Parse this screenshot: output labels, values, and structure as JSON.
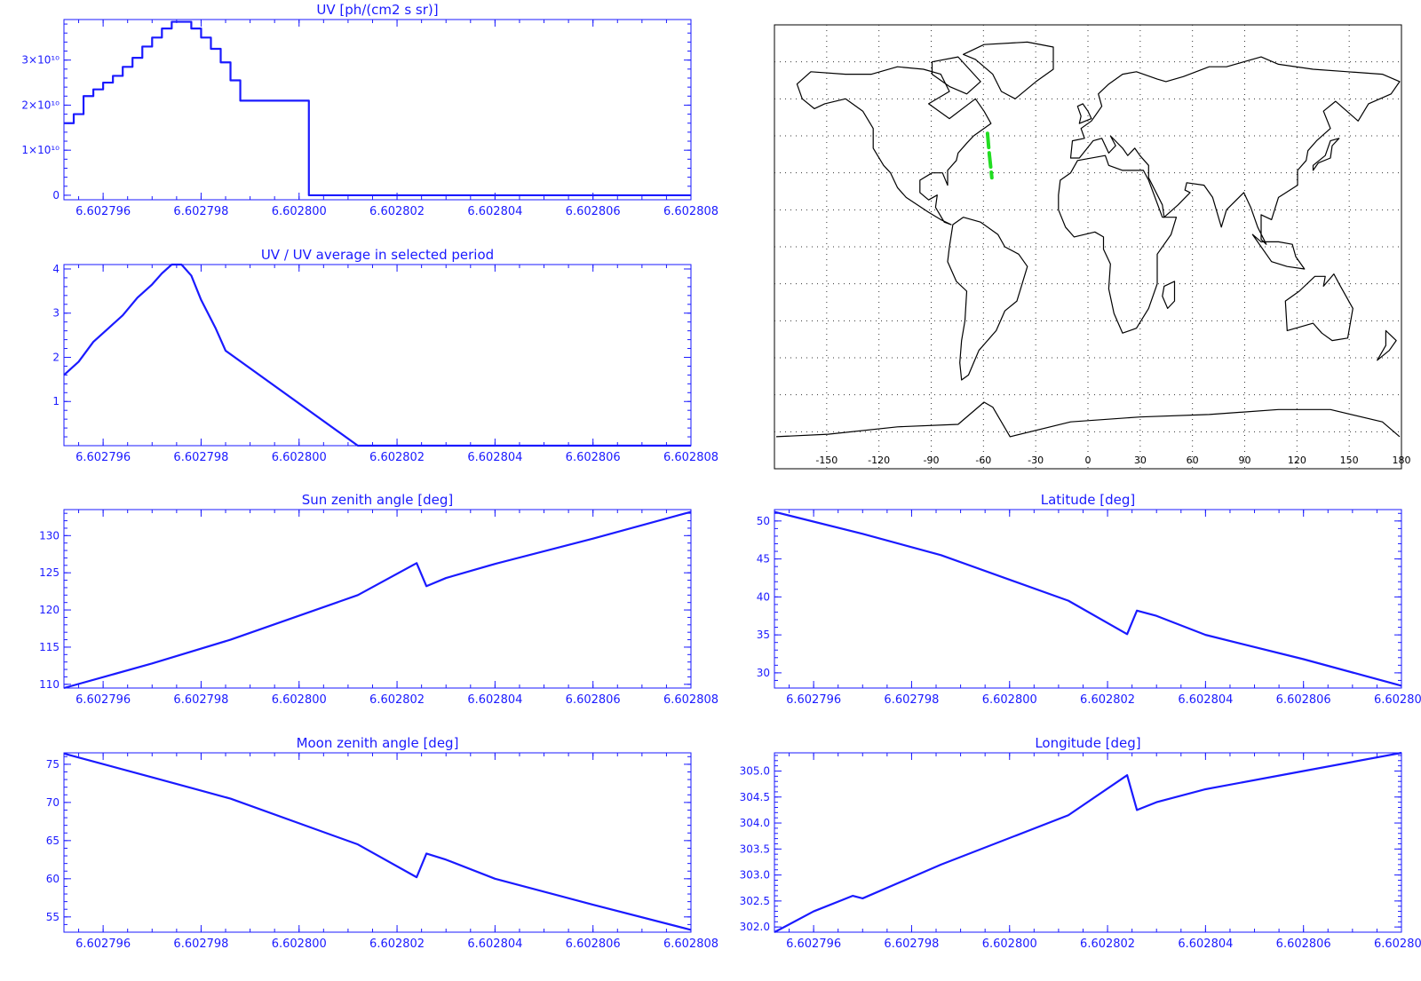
{
  "colors": {
    "plot": "#1a1aff",
    "map_outline": "#000000",
    "map_track": "#22dd22",
    "map_grid": "#333333"
  },
  "x_ticks": [
    "6.602796",
    "6.602798",
    "6.602800",
    "6.602802",
    "6.602804",
    "6.602806",
    "6.602808"
  ],
  "map": {
    "lon_ticks": [
      "-150",
      "-120",
      "-90",
      "-60",
      "-30",
      "0",
      "30",
      "60",
      "90",
      "120",
      "150",
      "180"
    ],
    "track": [
      [
        -58,
        46
      ],
      [
        -57,
        38
      ],
      [
        -55.5,
        28
      ]
    ]
  },
  "chart_data": [
    {
      "id": "uv",
      "type": "line",
      "step": true,
      "title": "UV [ph/(cm2 s sr)]",
      "xlim": [
        6.6027952,
        6.602808
      ],
      "ylim": [
        -1000000000.0,
        39000000000.0
      ],
      "y_ticks": [
        {
          "v": 0,
          "label": "0"
        },
        {
          "v": 10000000000.0,
          "label": "1×10¹⁰"
        },
        {
          "v": 20000000000.0,
          "label": "2×10¹⁰"
        },
        {
          "v": 30000000000.0,
          "label": "3×10¹⁰"
        }
      ],
      "x": [
        6.6027952,
        6.6027954,
        6.6027956,
        6.6027958,
        6.602796,
        6.6027962,
        6.6027964,
        6.6027966,
        6.6027968,
        6.602797,
        6.6027972,
        6.6027974,
        6.6027976,
        6.6027978,
        6.602798,
        6.6027982,
        6.6027984,
        6.6027986,
        6.6027988,
        6.6028,
        6.6028002,
        6.6028018,
        6.602808
      ],
      "values": [
        16000000000.0,
        18000000000.0,
        22000000000.0,
        23500000000.0,
        25000000000.0,
        26500000000.0,
        28500000000.0,
        30500000000.0,
        33000000000.0,
        35000000000.0,
        37000000000.0,
        38500000000.0,
        38500000000.0,
        37000000000.0,
        35000000000.0,
        32500000000.0,
        29500000000.0,
        25500000000.0,
        21000000000.0,
        21000000000.0,
        0,
        0,
        0
      ]
    },
    {
      "id": "ratio",
      "type": "line",
      "title": "UV / UV average in selected period",
      "xlim": [
        6.6027952,
        6.602808
      ],
      "ylim": [
        0,
        4.1
      ],
      "y_ticks": [
        {
          "v": 1,
          "label": "1"
        },
        {
          "v": 2,
          "label": "2"
        },
        {
          "v": 3,
          "label": "3"
        },
        {
          "v": 4,
          "label": "4"
        }
      ],
      "x": [
        6.6027952,
        6.6027955,
        6.6027958,
        6.6027961,
        6.6027964,
        6.6027967,
        6.602797,
        6.6027972,
        6.6027974,
        6.6027976,
        6.6027978,
        6.602798,
        6.6027983,
        6.6027985,
        6.6028012,
        6.602802,
        6.602808
      ],
      "values": [
        1.6,
        1.9,
        2.35,
        2.65,
        2.95,
        3.35,
        3.65,
        3.9,
        4.1,
        4.1,
        3.85,
        3.3,
        2.65,
        2.15,
        0.0,
        0.0,
        0.0
      ]
    },
    {
      "id": "sun",
      "type": "line",
      "title": "Sun zenith angle [deg]",
      "xlim": [
        6.6027952,
        6.602808
      ],
      "ylim": [
        109.5,
        133.5
      ],
      "y_ticks": [
        {
          "v": 110,
          "label": "110"
        },
        {
          "v": 115,
          "label": "115"
        },
        {
          "v": 120,
          "label": "120"
        },
        {
          "v": 125,
          "label": "125"
        },
        {
          "v": 130,
          "label": "130"
        }
      ],
      "x": [
        6.6027952,
        6.602797,
        6.6027986,
        6.6028012,
        6.6028024,
        6.6028026,
        6.602803,
        6.602804,
        6.602806,
        6.602808
      ],
      "values": [
        109.5,
        112.8,
        116,
        122,
        126.3,
        123.2,
        124.3,
        126.2,
        129.6,
        133.2
      ]
    },
    {
      "id": "lat",
      "type": "line",
      "title": "Latitude [deg]",
      "xlim": [
        6.6027952,
        6.602808
      ],
      "ylim": [
        28,
        51.5
      ],
      "y_ticks": [
        {
          "v": 30,
          "label": "30"
        },
        {
          "v": 35,
          "label": "35"
        },
        {
          "v": 40,
          "label": "40"
        },
        {
          "v": 45,
          "label": "45"
        },
        {
          "v": 50,
          "label": "50"
        }
      ],
      "x": [
        6.6027952,
        6.602797,
        6.6027986,
        6.6028012,
        6.6028024,
        6.6028026,
        6.602803,
        6.602804,
        6.602806,
        6.602808
      ],
      "values": [
        51.2,
        48.3,
        45.5,
        39.5,
        35.1,
        38.2,
        37.5,
        35.0,
        31.8,
        28.3
      ]
    },
    {
      "id": "moon",
      "type": "line",
      "title": "Moon zenith angle [deg]",
      "xlim": [
        6.6027952,
        6.602808
      ],
      "ylim": [
        53,
        76.5
      ],
      "y_ticks": [
        {
          "v": 55,
          "label": "55"
        },
        {
          "v": 60,
          "label": "60"
        },
        {
          "v": 65,
          "label": "65"
        },
        {
          "v": 70,
          "label": "70"
        },
        {
          "v": 75,
          "label": "75"
        }
      ],
      "x": [
        6.6027952,
        6.602797,
        6.6027986,
        6.6028012,
        6.6028024,
        6.6028026,
        6.602803,
        6.602804,
        6.602806,
        6.602808
      ],
      "values": [
        76.4,
        73.3,
        70.5,
        64.5,
        60.2,
        63.3,
        62.5,
        60.0,
        56.6,
        53.3
      ]
    },
    {
      "id": "lon",
      "type": "line",
      "title": "Longitude [deg]",
      "xlim": [
        6.6027952,
        6.602808
      ],
      "ylim": [
        301.9,
        305.35
      ],
      "y_ticks": [
        {
          "v": 302.0,
          "label": "302.0"
        },
        {
          "v": 302.5,
          "label": "302.5"
        },
        {
          "v": 303.0,
          "label": "303.0"
        },
        {
          "v": 303.5,
          "label": "303.5"
        },
        {
          "v": 304.0,
          "label": "304.0"
        },
        {
          "v": 304.5,
          "label": "304.5"
        },
        {
          "v": 305.0,
          "label": "305.0"
        }
      ],
      "x": [
        6.6027952,
        6.602796,
        6.6027968,
        6.602797,
        6.6027986,
        6.6028012,
        6.6028024,
        6.6028026,
        6.602803,
        6.602804,
        6.602806,
        6.602808
      ],
      "values": [
        301.9,
        302.3,
        302.6,
        302.55,
        303.2,
        304.15,
        304.92,
        304.25,
        304.4,
        304.65,
        305.0,
        305.35
      ]
    }
  ]
}
